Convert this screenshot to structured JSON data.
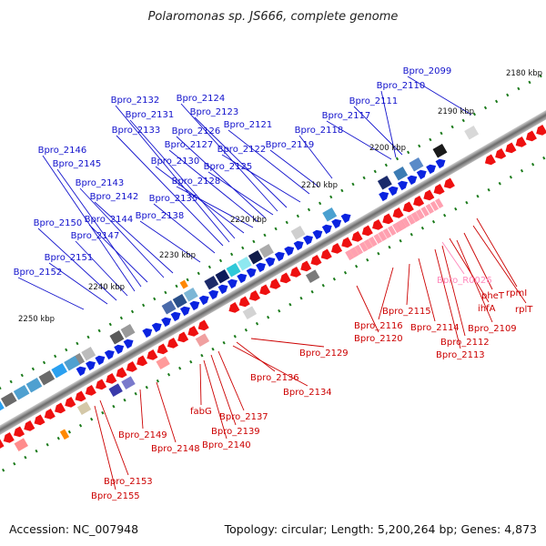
{
  "title": "Polaromonas sp. JS666, complete genome",
  "accession": "Accession: NC_007948",
  "summary": "Topology: circular; Length: 5,200,264 bp; Genes: 4,873",
  "colors": {
    "forward_label": "#1111cc",
    "reverse_label": "#cc0000",
    "rna_label": "#ff88bb",
    "backbone": "#777777",
    "tick": "#1a7a1a"
  },
  "scale_labels": [
    "2180 kbp",
    "2190 kbp",
    "2200 kbp",
    "2210 kbp",
    "2220 kbp",
    "2230 kbp",
    "2240 kbp",
    "2250 kbp"
  ],
  "forward_genes": [
    "Bpro_2099",
    "Bpro_2110",
    "Bpro_2111",
    "Bpro_2117",
    "Bpro_2118",
    "Bpro_2119",
    "Bpro_2121",
    "Bpro_2122",
    "Bpro_2123",
    "Bpro_2124",
    "Bpro_2125",
    "Bpro_2126",
    "Bpro_2127",
    "Bpro_2128",
    "Bpro_2130",
    "Bpro_2131",
    "Bpro_2132",
    "Bpro_2133",
    "Bpro_2135",
    "Bpro_2138",
    "Bpro_2142",
    "Bpro_2143",
    "Bpro_2144",
    "Bpro_2145",
    "Bpro_2146",
    "Bpro_2147",
    "Bpro_2150",
    "Bpro_2151",
    "Bpro_2152"
  ],
  "reverse_genes": [
    "rpmI",
    "rplT",
    "pheT",
    "ihfA",
    "Bpro_2109",
    "Bpro_2112",
    "Bpro_2113",
    "Bpro_2114",
    "Bpro_2115",
    "Bpro_2116",
    "Bpro_2120",
    "Bpro_2129",
    "Bpro_2134",
    "Bpro_2136",
    "Bpro_2137",
    "Bpro_2139",
    "Bpro_2140",
    "fabG",
    "Bpro_2148",
    "Bpro_2149",
    "Bpro_2153",
    "Bpro_2155"
  ],
  "rna_genes": [
    "Bpro_R0026"
  ]
}
